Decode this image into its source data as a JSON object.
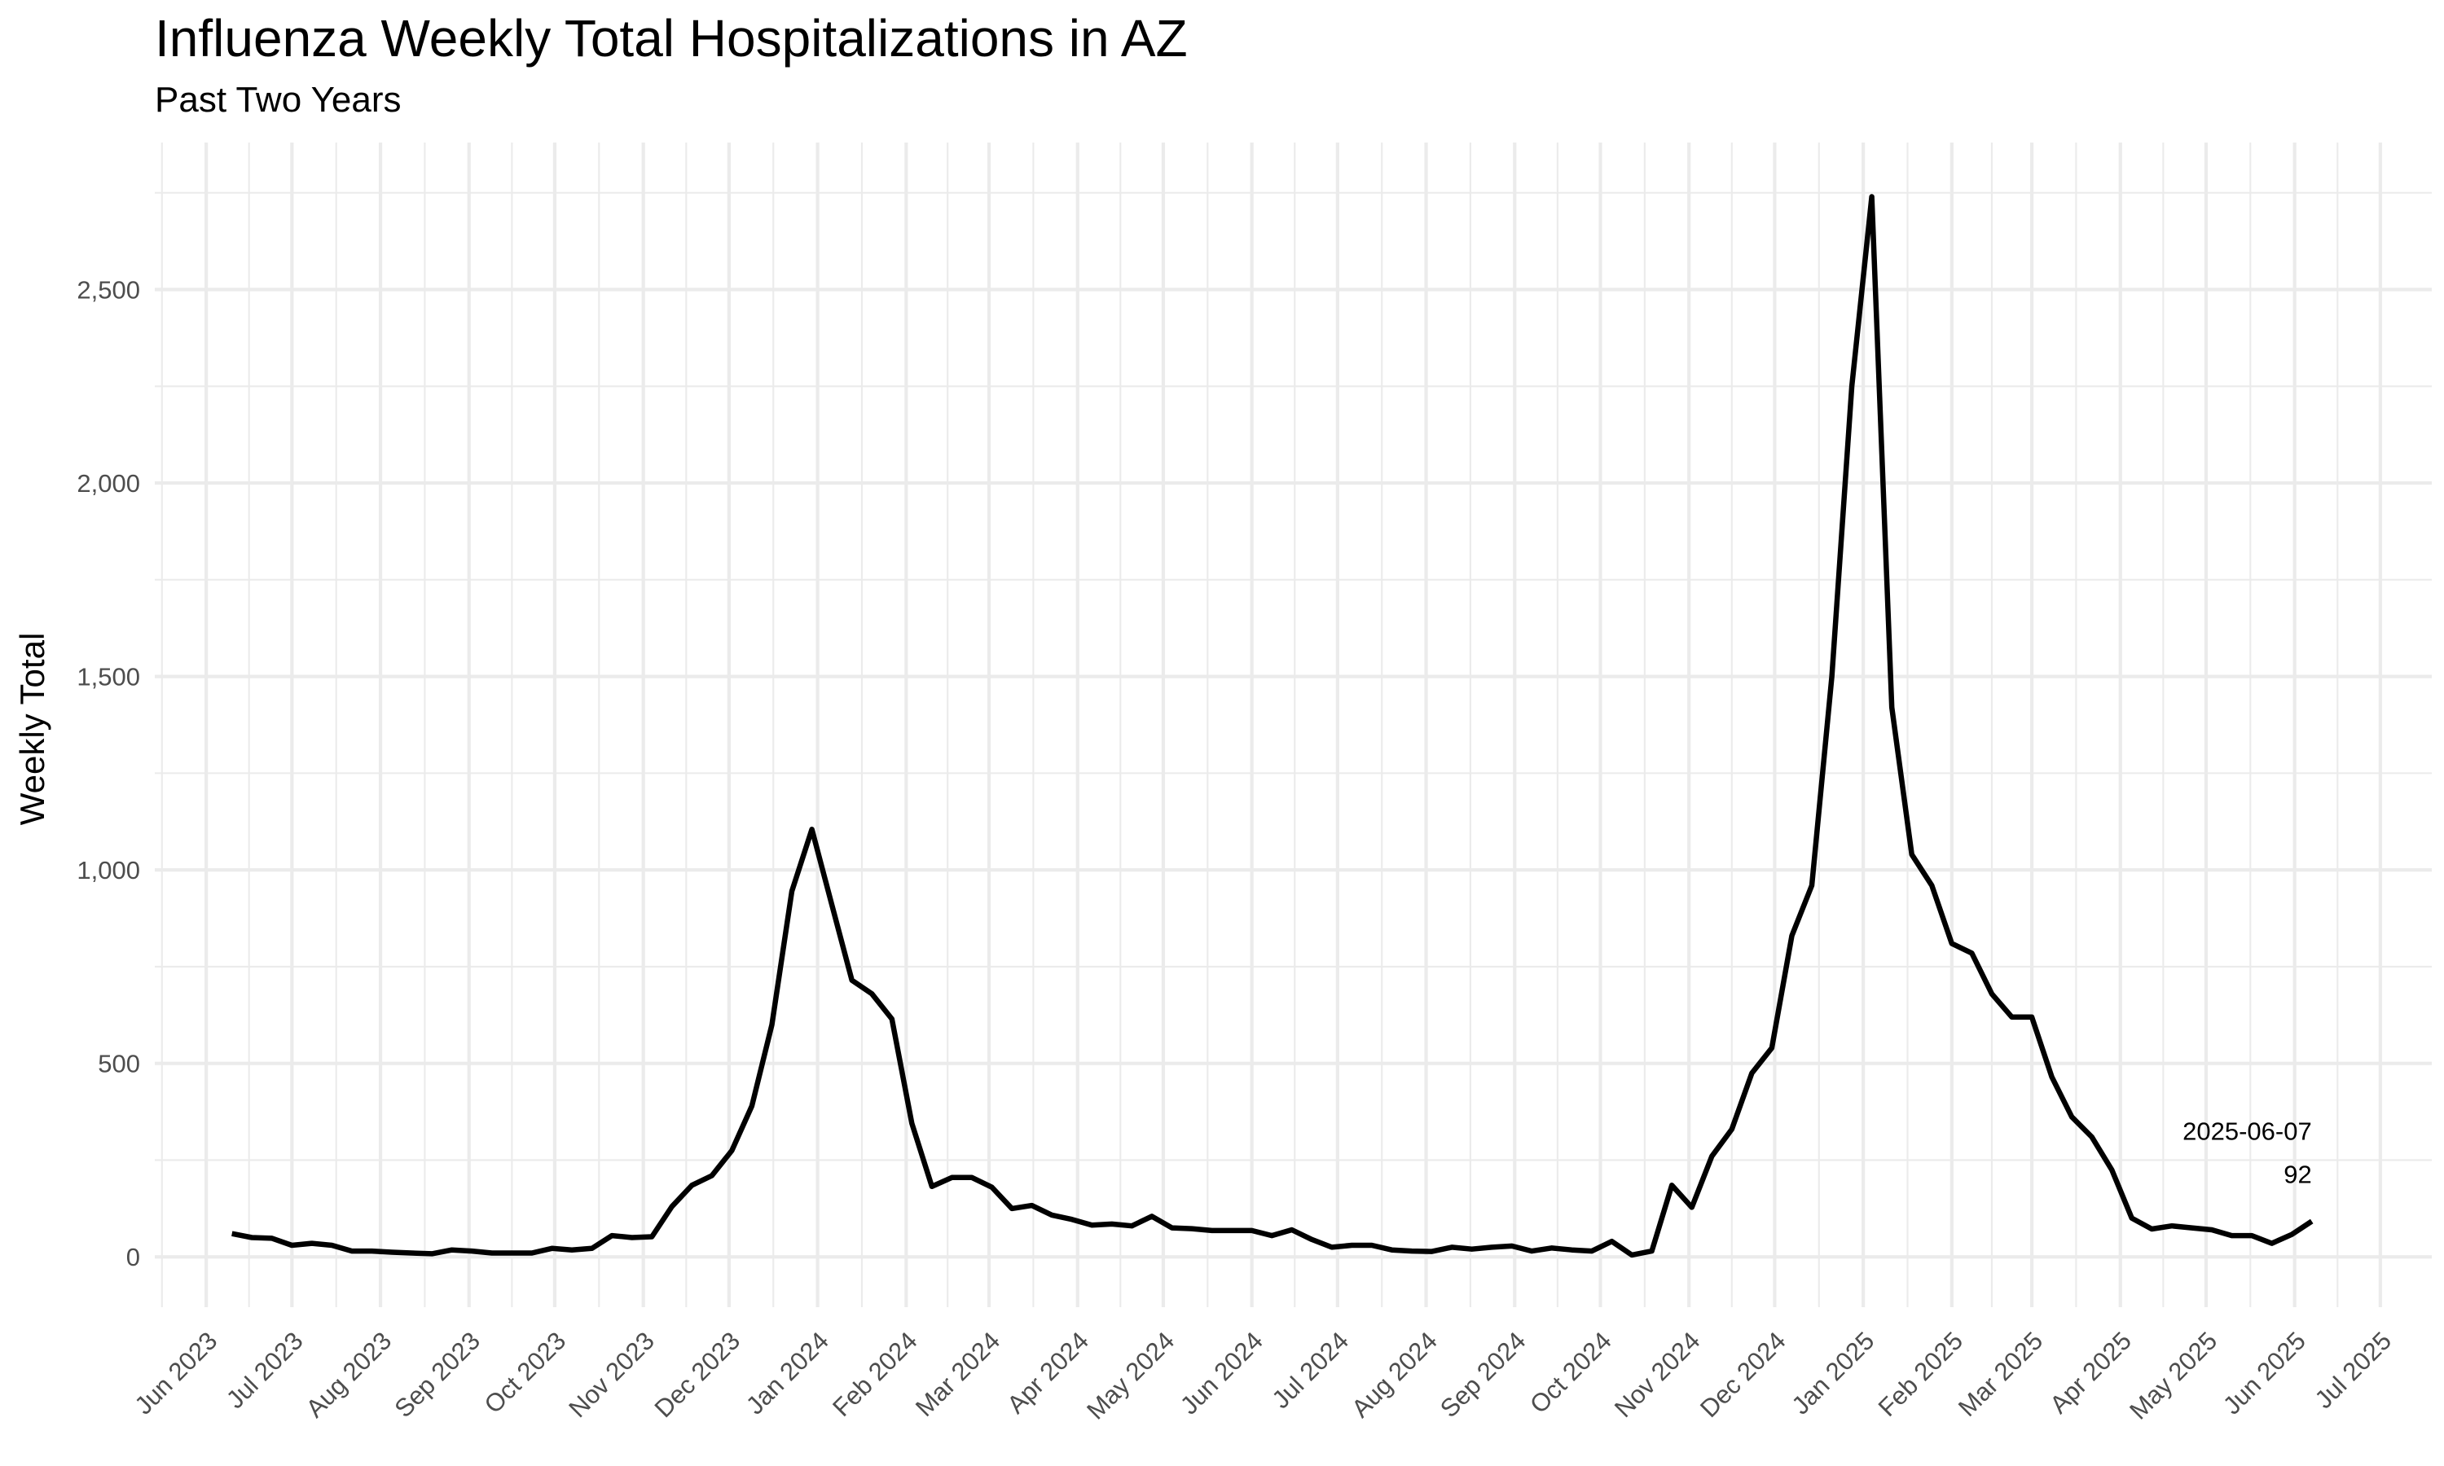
{
  "chart_data": {
    "type": "line",
    "title": "Influenza Weekly Total Hospitalizations in AZ",
    "subtitle": "Past Two Years",
    "xlabel": "",
    "ylabel": "Weekly Total",
    "x_axis_type": "date",
    "xlim": [
      "2023-05-14",
      "2025-07-19"
    ],
    "ylim": [
      -130,
      2880
    ],
    "y_ticks": [
      0,
      500,
      1000,
      1500,
      2000,
      2500
    ],
    "y_tick_labels": [
      "0",
      "500",
      "1,000",
      "1,500",
      "2,000",
      "2,500"
    ],
    "x_ticks": [
      "2023-06-01",
      "2023-07-01",
      "2023-08-01",
      "2023-09-01",
      "2023-10-01",
      "2023-11-01",
      "2023-12-01",
      "2024-01-01",
      "2024-02-01",
      "2024-03-01",
      "2024-04-01",
      "2024-05-01",
      "2024-06-01",
      "2024-07-01",
      "2024-08-01",
      "2024-09-01",
      "2024-10-01",
      "2024-11-01",
      "2024-12-01",
      "2025-01-01",
      "2025-02-01",
      "2025-03-01",
      "2025-04-01",
      "2025-05-01",
      "2025-06-01",
      "2025-07-01"
    ],
    "x_tick_labels": [
      "Jun 2023",
      "Jul 2023",
      "Aug 2023",
      "Sep 2023",
      "Oct 2023",
      "Nov 2023",
      "Dec 2023",
      "Jan 2024",
      "Feb 2024",
      "Mar 2024",
      "Apr 2024",
      "May 2024",
      "Jun 2024",
      "Jul 2024",
      "Aug 2024",
      "Sep 2024",
      "Oct 2024",
      "Nov 2024",
      "Dec 2024",
      "Jan 2025",
      "Feb 2025",
      "Mar 2025",
      "Apr 2025",
      "May 2025",
      "Jun 2025",
      "Jul 2025"
    ],
    "grid": true,
    "line_color": "#000000",
    "series": [
      {
        "x": [
          "2023-06-10",
          "2023-06-17",
          "2023-06-24",
          "2023-07-01",
          "2023-07-08",
          "2023-07-15",
          "2023-07-22",
          "2023-07-29",
          "2023-08-05",
          "2023-08-12",
          "2023-08-19",
          "2023-08-26",
          "2023-09-02",
          "2023-09-09",
          "2023-09-16",
          "2023-09-23",
          "2023-09-30",
          "2023-10-07",
          "2023-10-14",
          "2023-10-21",
          "2023-10-28",
          "2023-11-04",
          "2023-11-11",
          "2023-11-18",
          "2023-11-25",
          "2023-12-02",
          "2023-12-09",
          "2023-12-16",
          "2023-12-23",
          "2023-12-30",
          "2024-01-06",
          "2024-01-13",
          "2024-01-20",
          "2024-01-27",
          "2024-02-03",
          "2024-02-10",
          "2024-02-17",
          "2024-02-24",
          "2024-03-02",
          "2024-03-09",
          "2024-03-16",
          "2024-03-23",
          "2024-03-30",
          "2024-04-06",
          "2024-04-13",
          "2024-04-20",
          "2024-04-27",
          "2024-05-04",
          "2024-05-11",
          "2024-05-18",
          "2024-05-25",
          "2024-06-01",
          "2024-06-08",
          "2024-06-15",
          "2024-06-22",
          "2024-06-29",
          "2024-07-06",
          "2024-07-13",
          "2024-07-20",
          "2024-07-27",
          "2024-08-03",
          "2024-08-10",
          "2024-08-17",
          "2024-08-24",
          "2024-08-31",
          "2024-09-07",
          "2024-09-14",
          "2024-09-21",
          "2024-09-28",
          "2024-10-05",
          "2024-10-12",
          "2024-10-19",
          "2024-10-26",
          "2024-11-02",
          "2024-11-09",
          "2024-11-16",
          "2024-11-23",
          "2024-11-30",
          "2024-12-07",
          "2024-12-14",
          "2024-12-21",
          "2024-12-28",
          "2025-01-04",
          "2025-01-11",
          "2025-01-18",
          "2025-01-25",
          "2025-02-01",
          "2025-02-08",
          "2025-02-15",
          "2025-02-22",
          "2025-03-01",
          "2025-03-08",
          "2025-03-15",
          "2025-03-22",
          "2025-03-29",
          "2025-04-05",
          "2025-04-12",
          "2025-04-19",
          "2025-04-26",
          "2025-05-03",
          "2025-05-10",
          "2025-05-17",
          "2025-05-24",
          "2025-05-31",
          "2025-06-07"
        ],
        "y": [
          60,
          50,
          48,
          30,
          35,
          30,
          15,
          15,
          12,
          10,
          8,
          18,
          15,
          10,
          10,
          10,
          22,
          18,
          22,
          55,
          50,
          52,
          130,
          185,
          210,
          275,
          390,
          600,
          945,
          1105,
          910,
          715,
          680,
          615,
          345,
          182,
          205,
          205,
          180,
          125,
          133,
          108,
          97,
          82,
          85,
          80,
          105,
          75,
          73,
          68,
          68,
          68,
          55,
          70,
          45,
          25,
          30,
          30,
          18,
          15,
          14,
          25,
          20,
          25,
          28,
          15,
          23,
          18,
          15,
          40,
          5,
          15,
          185,
          128,
          260,
          330,
          475,
          540,
          830,
          960,
          1500,
          2250,
          2740,
          1420,
          1040,
          960,
          810,
          785,
          680,
          620,
          620,
          465,
          362,
          310,
          225,
          100,
          72,
          80,
          75,
          70,
          55,
          55,
          35,
          58,
          92
        ]
      }
    ],
    "annotations": [
      {
        "date_text": "2025-06-07",
        "value_text": "92"
      }
    ]
  }
}
